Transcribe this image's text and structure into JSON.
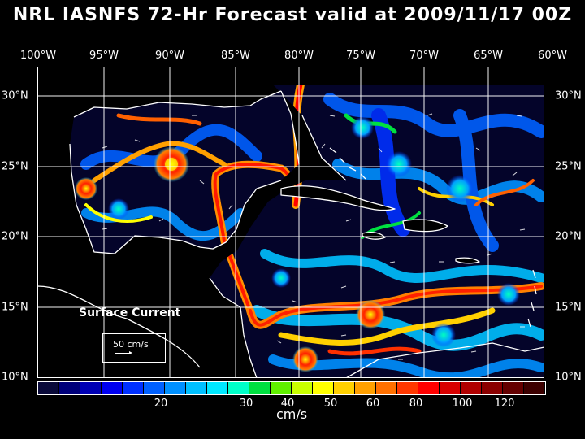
{
  "title": "NRL IASNFS  72-Hr Forecast valid at 2009/11/17 00Z",
  "lon_labels": [
    "100°W",
    "95°W",
    "90°W",
    "85°W",
    "80°W",
    "75°W",
    "70°W",
    "65°W",
    "60°W"
  ],
  "lat_labels": [
    "30°N",
    "25°N",
    "20°N",
    "15°N",
    "10°N"
  ],
  "legend": {
    "title": "Surface Current",
    "scale_label": "50 cm/s"
  },
  "colorbar": {
    "colors": [
      "#0a0a3a",
      "#00007a",
      "#0000b4",
      "#0000f0",
      "#0030ff",
      "#0060ff",
      "#0090ff",
      "#00c0ff",
      "#00e8ff",
      "#00ffc8",
      "#00e040",
      "#60f000",
      "#c8ff00",
      "#ffff00",
      "#ffd000",
      "#ffa000",
      "#ff7000",
      "#ff3800",
      "#ff0000",
      "#d80000",
      "#b00000",
      "#8a0000",
      "#640000",
      "#3c0000"
    ],
    "tick_labels": [
      "20",
      "30",
      "40",
      "50",
      "60",
      "80",
      "100",
      "120"
    ],
    "units": "cm/s"
  },
  "colors": {
    "background": "#000000",
    "ocean_dark": "#04042a",
    "land": "#000000",
    "coast": "#ffffff",
    "grid": "#ffffff"
  }
}
